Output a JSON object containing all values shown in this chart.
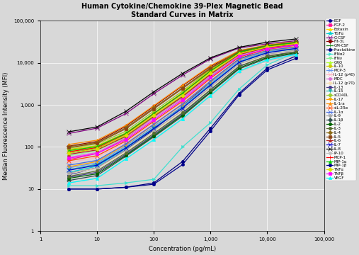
{
  "title": "Human Cytokine/Chemokine 39-Plex Magnetic Bead\nStandard Curves in Matrix",
  "xlabel": "Concentration (pg/mL)",
  "ylabel": "Median Fluorescence Intensity (MFI)",
  "xlim": [
    1,
    100000
  ],
  "ylim": [
    1,
    100000
  ],
  "x_points": [
    3.2,
    10,
    32,
    100,
    320,
    1000,
    3200,
    10000,
    32000
  ],
  "bg_color": "#D8D8D8",
  "series": [
    {
      "name": "EGF",
      "color": "#00008B",
      "marker": "o",
      "ms": 3,
      "lw": 0.9,
      "data": [
        22,
        32,
        85,
        260,
        920,
        3600,
        12500,
        22000,
        27000
      ]
    },
    {
      "name": "FGF-2",
      "color": "#FF1493",
      "marker": "s",
      "ms": 3,
      "lw": 0.9,
      "data": [
        50,
        70,
        160,
        510,
        1550,
        5200,
        16500,
        24000,
        29000
      ]
    },
    {
      "name": "Eotaxin",
      "color": "#FFD700",
      "marker": "^",
      "ms": 3,
      "lw": 0.9,
      "data": [
        85,
        105,
        210,
        630,
        2000,
        7000,
        18500,
        26000,
        31500
      ]
    },
    {
      "name": "TGFα",
      "color": "#00CED1",
      "marker": "*",
      "ms": 4,
      "lw": 0.9,
      "data": [
        25,
        35,
        92,
        275,
        860,
        3100,
        10500,
        18500,
        22500
      ]
    },
    {
      "name": "G-CSF",
      "color": "#800080",
      "marker": "x",
      "ms": 4,
      "lw": 0.9,
      "data": [
        210,
        280,
        620,
        1850,
        5100,
        12500,
        22500,
        28500,
        33500
      ]
    },
    {
      "name": "Flt-3L",
      "color": "#8B0000",
      "marker": "D",
      "ms": 3,
      "lw": 0.9,
      "data": [
        105,
        135,
        310,
        920,
        2850,
        8200,
        18500,
        25500,
        30500
      ]
    },
    {
      "name": "GM-CSF",
      "color": "#228B22",
      "marker": "+",
      "ms": 4,
      "lw": 0.9,
      "data": [
        72,
        92,
        185,
        560,
        1650,
        5600,
        16500,
        23500,
        28500
      ]
    },
    {
      "name": "Fractalkine",
      "color": "#000080",
      "marker": "o",
      "ms": 3,
      "lw": 0.9,
      "data": [
        10,
        10,
        11,
        14,
        45,
        280,
        1900,
        7500,
        14500
      ]
    },
    {
      "name": "IFNα2",
      "color": "#40E0D0",
      "marker": ">",
      "ms": 3,
      "lw": 0.9,
      "data": [
        12,
        12,
        14,
        17,
        100,
        380,
        2400,
        9000,
        17500
      ]
    },
    {
      "name": "IFNγ",
      "color": "#90EE90",
      "marker": "v",
      "ms": 3,
      "lw": 0.9,
      "data": [
        62,
        82,
        172,
        510,
        1450,
        4900,
        14500,
        21000,
        25500
      ]
    },
    {
      "name": "GRO",
      "color": "#ADFF2F",
      "marker": "^",
      "ms": 3,
      "lw": 0.9,
      "data": [
        78,
        98,
        195,
        580,
        1720,
        6100,
        17500,
        24500,
        29500
      ]
    },
    {
      "name": "IL-10",
      "color": "#CCCC00",
      "marker": "o",
      "ms": 3,
      "lw": 0.9,
      "data": [
        88,
        108,
        215,
        640,
        1920,
        6600,
        18500,
        25500,
        30500
      ]
    },
    {
      "name": "MCP-3",
      "color": "#6495ED",
      "marker": "x",
      "ms": 4,
      "lw": 0.9,
      "data": [
        32,
        42,
        105,
        310,
        920,
        3300,
        11500,
        18500,
        22500
      ]
    },
    {
      "name": "IL-12 (p40)",
      "color": "#FFB6C1",
      "marker": "x",
      "ms": 4,
      "lw": 0.9,
      "data": [
        42,
        57,
        125,
        370,
        1120,
        4100,
        13500,
        20500,
        25500
      ]
    },
    {
      "name": "MDC",
      "color": "#DA70D6",
      "marker": "o",
      "ms": 3,
      "lw": 0.9,
      "data": [
        57,
        74,
        164,
        490,
        1420,
        5100,
        15500,
        22500,
        27500
      ]
    },
    {
      "name": "IL-12 (p70)",
      "color": "#F5DEB3",
      "marker": "o",
      "ms": 3,
      "lw": 0.9,
      "data": [
        23,
        31,
        77,
        225,
        715,
        2550,
        9200,
        15500,
        19500
      ]
    },
    {
      "name": "IL-13",
      "color": "#483D8B",
      "marker": "o",
      "ms": 3,
      "lw": 0.9,
      "data": [
        19,
        25,
        67,
        195,
        610,
        2250,
        8200,
        14500,
        18500
      ]
    },
    {
      "name": "IL-15",
      "color": "#20B2AA",
      "marker": "v",
      "ms": 3,
      "lw": 0.9,
      "data": [
        29,
        39,
        97,
        285,
        860,
        3050,
        10200,
        17500,
        21500
      ]
    },
    {
      "name": "sCD40L",
      "color": "#9ACD32",
      "marker": "D",
      "ms": 3,
      "lw": 0.9,
      "data": [
        93,
        118,
        235,
        710,
        2130,
        7100,
        19500,
        26500,
        31500
      ]
    },
    {
      "name": "IL-17",
      "color": "#FFA500",
      "marker": "v",
      "ms": 3,
      "lw": 0.9,
      "data": [
        34,
        45,
        113,
        340,
        1020,
        3600,
        12200,
        19500,
        23500
      ]
    },
    {
      "name": "IL-1ra",
      "color": "#FF8C00",
      "marker": "^",
      "ms": 3,
      "lw": 0.9,
      "data": [
        115,
        145,
        325,
        960,
        2950,
        8600,
        19500,
        26500,
        31500
      ]
    },
    {
      "name": "sIL-2Rα",
      "color": "#FF4500",
      "marker": "x",
      "ms": 4,
      "lw": 0.9,
      "data": [
        47,
        62,
        138,
        410,
        1220,
        4300,
        13800,
        21000,
        26000
      ]
    },
    {
      "name": "IL-1α",
      "color": "#4169E1",
      "marker": "x",
      "ms": 4,
      "lw": 0.9,
      "data": [
        37,
        48,
        118,
        348,
        1050,
        3700,
        12500,
        19700,
        24000
      ]
    },
    {
      "name": "IL-9",
      "color": "#A9A9A9",
      "marker": "o",
      "ms": 3,
      "lw": 0.9,
      "data": [
        24,
        32,
        84,
        245,
        745,
        2650,
        9500,
        16000,
        20000
      ]
    },
    {
      "name": "IL-1β",
      "color": "#2F4F4F",
      "marker": "D",
      "ms": 3,
      "lw": 0.9,
      "data": [
        16,
        21,
        60,
        174,
        540,
        1950,
        7200,
        12800,
        16800
      ]
    },
    {
      "name": "IL-2",
      "color": "#006400",
      "marker": "o",
      "ms": 3,
      "lw": 0.9,
      "data": [
        18,
        23,
        63,
        183,
        570,
        2050,
        7600,
        13500,
        17500
      ]
    },
    {
      "name": "IL-3",
      "color": "#556B2F",
      "marker": "o",
      "ms": 3,
      "lw": 0.9,
      "data": [
        20,
        27,
        72,
        210,
        648,
        2300,
        8400,
        14300,
        18300
      ]
    },
    {
      "name": "IL-4",
      "color": "#8B6914",
      "marker": "D",
      "ms": 3,
      "lw": 0.9,
      "data": [
        103,
        128,
        285,
        845,
        2550,
        7600,
        19000,
        26000,
        31000
      ]
    },
    {
      "name": "IL-5",
      "color": "#8B4513",
      "marker": "s",
      "ms": 3,
      "lw": 0.9,
      "data": [
        97,
        123,
        270,
        805,
        2450,
        7300,
        18500,
        25500,
        30500
      ]
    },
    {
      "name": "IL-6",
      "color": "#B22222",
      "marker": "^",
      "ms": 3,
      "lw": 0.9,
      "data": [
        67,
        85,
        178,
        530,
        1580,
        5400,
        15800,
        23000,
        28000
      ]
    },
    {
      "name": "IL-7",
      "color": "#0000CD",
      "marker": "x",
      "ms": 5,
      "lw": 0.9,
      "data": [
        28,
        37,
        94,
        274,
        835,
        2950,
        10400,
        17400,
        22000
      ]
    },
    {
      "name": "IL-8",
      "color": "#000000",
      "marker": "x",
      "ms": 5,
      "lw": 0.9,
      "data": [
        230,
        300,
        700,
        2050,
        5600,
        13200,
        23500,
        31000,
        37000
      ]
    },
    {
      "name": "IP-10",
      "color": "#C0C0C0",
      "marker": "o",
      "ms": 3,
      "lw": 0.9,
      "data": [
        14,
        18,
        52,
        148,
        460,
        1650,
        6200,
        11200,
        15200
      ]
    },
    {
      "name": "MCP-1",
      "color": "#FF0000",
      "marker": "+",
      "ms": 4,
      "lw": 0.9,
      "data": [
        77,
        97,
        204,
        620,
        1880,
        6400,
        17800,
        25000,
        30000
      ]
    },
    {
      "name": "MIP-1α",
      "color": "#00CC00",
      "marker": "^",
      "ms": 3,
      "lw": 0.9,
      "data": [
        82,
        102,
        209,
        630,
        1900,
        6450,
        18000,
        25200,
        30200
      ]
    },
    {
      "name": "MIP-1β",
      "color": "#00008B",
      "marker": "o",
      "ms": 3,
      "lw": 0.9,
      "data": [
        10,
        10,
        11,
        13,
        38,
        240,
        1750,
        6800,
        12800
      ]
    },
    {
      "name": "TNFα",
      "color": "#DDDD00",
      "marker": "D",
      "ms": 3,
      "lw": 0.9,
      "data": [
        72,
        90,
        188,
        565,
        1680,
        5700,
        16500,
        23700,
        28700
      ]
    },
    {
      "name": "TNFβ",
      "color": "#FF00FF",
      "marker": "s",
      "ms": 3,
      "lw": 0.9,
      "data": [
        54,
        70,
        148,
        445,
        1320,
        4600,
        14300,
        21500,
        26500
      ]
    },
    {
      "name": "VEGF",
      "color": "#00FFFF",
      "marker": "^",
      "ms": 3,
      "lw": 0.9,
      "data": [
        14,
        18,
        52,
        150,
        470,
        1680,
        6400,
        11800,
        15800
      ]
    }
  ]
}
